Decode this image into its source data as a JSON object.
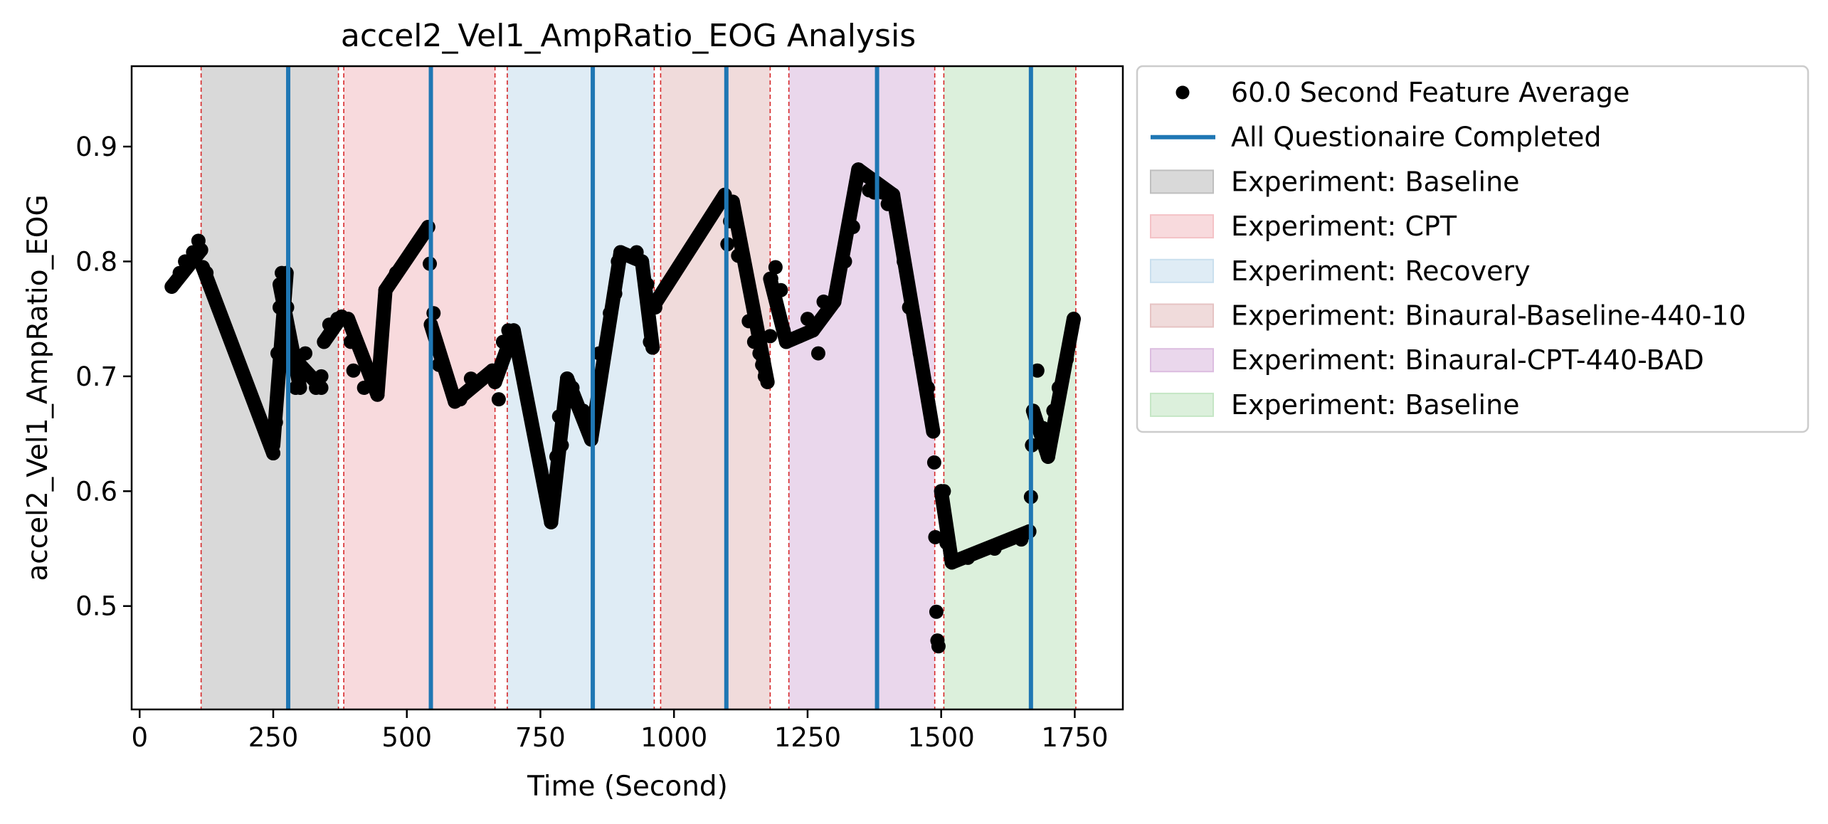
{
  "chart_data": {
    "type": "scatter",
    "title": "accel2_Vel1_AmpRatio_EOG Analysis",
    "xlabel": "Time (Second)",
    "ylabel": "accel2_Vel1_AmpRatio_EOG",
    "xlim": [
      -15,
      1840
    ],
    "ylim": [
      0.41,
      0.97
    ],
    "xticks": [
      {
        "value": 0,
        "label": "0"
      },
      {
        "value": 250,
        "label": "250"
      },
      {
        "value": 500,
        "label": "500"
      },
      {
        "value": 750,
        "label": "750"
      },
      {
        "value": 1000,
        "label": "1000"
      },
      {
        "value": 1250,
        "label": "1250"
      },
      {
        "value": 1500,
        "label": "1500"
      },
      {
        "value": 1750,
        "label": "1750"
      }
    ],
    "yticks": [
      {
        "value": 0.5,
        "label": "0.5"
      },
      {
        "value": 0.6,
        "label": "0.6"
      },
      {
        "value": 0.7,
        "label": "0.7"
      },
      {
        "value": 0.8,
        "label": "0.8"
      },
      {
        "value": 0.9,
        "label": "0.9"
      }
    ],
    "grid": false,
    "legend_placement": "outside-right",
    "series": [
      {
        "name": "60.0 Second Feature Average",
        "kind": "scatter",
        "color": "#000000",
        "points": [
          [
            60,
            0.778
          ],
          [
            75,
            0.79
          ],
          [
            85,
            0.8
          ],
          [
            100,
            0.808
          ],
          [
            110,
            0.818
          ],
          [
            115,
            0.81
          ],
          [
            118,
            0.795
          ],
          [
            125,
            0.79
          ],
          [
            250,
            0.633
          ],
          [
            255,
            0.66
          ],
          [
            258,
            0.72
          ],
          [
            262,
            0.76
          ],
          [
            266,
            0.79
          ],
          [
            270,
            0.775
          ],
          [
            276,
            0.76
          ],
          [
            285,
            0.72
          ],
          [
            292,
            0.69
          ],
          [
            300,
            0.71
          ],
          [
            310,
            0.72
          ],
          [
            320,
            0.7
          ],
          [
            330,
            0.69
          ],
          [
            340,
            0.7
          ],
          [
            345,
            0.73
          ],
          [
            355,
            0.745
          ],
          [
            370,
            0.75
          ],
          [
            378,
            0.752
          ],
          [
            390,
            0.75
          ],
          [
            395,
            0.73
          ],
          [
            400,
            0.705
          ],
          [
            420,
            0.69
          ],
          [
            445,
            0.684
          ],
          [
            460,
            0.775
          ],
          [
            480,
            0.79
          ],
          [
            540,
            0.83
          ],
          [
            543,
            0.798
          ],
          [
            545,
            0.745
          ],
          [
            550,
            0.755
          ],
          [
            555,
            0.73
          ],
          [
            560,
            0.71
          ],
          [
            590,
            0.678
          ],
          [
            600,
            0.68
          ],
          [
            620,
            0.698
          ],
          [
            650,
            0.7
          ],
          [
            660,
            0.705
          ],
          [
            665,
            0.695
          ],
          [
            672,
            0.68
          ],
          [
            680,
            0.73
          ],
          [
            690,
            0.74
          ],
          [
            700,
            0.735
          ],
          [
            770,
            0.573
          ],
          [
            775,
            0.61
          ],
          [
            780,
            0.63
          ],
          [
            785,
            0.665
          ],
          [
            790,
            0.64
          ],
          [
            800,
            0.698
          ],
          [
            810,
            0.69
          ],
          [
            830,
            0.67
          ],
          [
            845,
            0.645
          ],
          [
            860,
            0.72
          ],
          [
            880,
            0.755
          ],
          [
            890,
            0.772
          ],
          [
            895,
            0.8
          ],
          [
            900,
            0.808
          ],
          [
            930,
            0.808
          ],
          [
            940,
            0.8
          ],
          [
            950,
            0.78
          ],
          [
            955,
            0.73
          ],
          [
            960,
            0.725
          ],
          [
            965,
            0.76
          ],
          [
            1095,
            0.858
          ],
          [
            1100,
            0.815
          ],
          [
            1105,
            0.835
          ],
          [
            1110,
            0.852
          ],
          [
            1115,
            0.835
          ],
          [
            1120,
            0.805
          ],
          [
            1140,
            0.748
          ],
          [
            1150,
            0.73
          ],
          [
            1160,
            0.72
          ],
          [
            1165,
            0.71
          ],
          [
            1170,
            0.7
          ],
          [
            1175,
            0.695
          ],
          [
            1180,
            0.735
          ],
          [
            1182,
            0.785
          ],
          [
            1190,
            0.795
          ],
          [
            1200,
            0.775
          ],
          [
            1205,
            0.74
          ],
          [
            1210,
            0.73
          ],
          [
            1235,
            0.735
          ],
          [
            1250,
            0.75
          ],
          [
            1260,
            0.74
          ],
          [
            1270,
            0.72
          ],
          [
            1280,
            0.765
          ],
          [
            1300,
            0.765
          ],
          [
            1320,
            0.8
          ],
          [
            1335,
            0.83
          ],
          [
            1345,
            0.88
          ],
          [
            1355,
            0.875
          ],
          [
            1365,
            0.862
          ],
          [
            1375,
            0.86
          ],
          [
            1390,
            0.86
          ],
          [
            1400,
            0.85
          ],
          [
            1410,
            0.858
          ],
          [
            1420,
            0.83
          ],
          [
            1430,
            0.8
          ],
          [
            1440,
            0.76
          ],
          [
            1460,
            0.72
          ],
          [
            1475,
            0.69
          ],
          [
            1485,
            0.652
          ],
          [
            1487,
            0.625
          ],
          [
            1489,
            0.56
          ],
          [
            1491,
            0.495
          ],
          [
            1493,
            0.47
          ],
          [
            1495,
            0.465
          ],
          [
            1500,
            0.6
          ],
          [
            1505,
            0.6
          ],
          [
            1510,
            0.555
          ],
          [
            1520,
            0.538
          ],
          [
            1550,
            0.542
          ],
          [
            1600,
            0.55
          ],
          [
            1650,
            0.558
          ],
          [
            1665,
            0.565
          ],
          [
            1668,
            0.595
          ],
          [
            1670,
            0.64
          ],
          [
            1672,
            0.67
          ],
          [
            1680,
            0.705
          ],
          [
            1690,
            0.655
          ],
          [
            1700,
            0.63
          ],
          [
            1710,
            0.67
          ],
          [
            1720,
            0.69
          ],
          [
            1735,
            0.715
          ],
          [
            1748,
            0.75
          ]
        ],
        "segments": [
          [
            [
              60,
              0.778
            ],
            [
              115,
              0.81
            ]
          ],
          [
            [
              118,
              0.795
            ],
            [
              250,
              0.633
            ]
          ],
          [
            [
              250,
              0.64
            ],
            [
              275,
              0.79
            ]
          ],
          [
            [
              262,
              0.78
            ],
            [
              300,
              0.69
            ]
          ],
          [
            [
              300,
              0.71
            ],
            [
              340,
              0.69
            ]
          ],
          [
            [
              345,
              0.73
            ],
            [
              378,
              0.752
            ]
          ],
          [
            [
              390,
              0.75
            ],
            [
              445,
              0.684
            ]
          ],
          [
            [
              445,
              0.684
            ],
            [
              460,
              0.775
            ]
          ],
          [
            [
              460,
              0.775
            ],
            [
              540,
              0.83
            ]
          ],
          [
            [
              545,
              0.745
            ],
            [
              590,
              0.678
            ]
          ],
          [
            [
              590,
              0.678
            ],
            [
              660,
              0.705
            ]
          ],
          [
            [
              665,
              0.695
            ],
            [
              700,
              0.74
            ]
          ],
          [
            [
              700,
              0.74
            ],
            [
              770,
              0.573
            ]
          ],
          [
            [
              770,
              0.573
            ],
            [
              800,
              0.698
            ]
          ],
          [
            [
              800,
              0.698
            ],
            [
              845,
              0.645
            ]
          ],
          [
            [
              845,
              0.645
            ],
            [
              900,
              0.808
            ]
          ],
          [
            [
              900,
              0.808
            ],
            [
              940,
              0.8
            ]
          ],
          [
            [
              940,
              0.8
            ],
            [
              960,
              0.725
            ]
          ],
          [
            [
              960,
              0.76
            ],
            [
              1095,
              0.858
            ]
          ],
          [
            [
              1110,
              0.852
            ],
            [
              1175,
              0.695
            ]
          ],
          [
            [
              1180,
              0.785
            ],
            [
              1210,
              0.73
            ]
          ],
          [
            [
              1210,
              0.73
            ],
            [
              1260,
              0.74
            ]
          ],
          [
            [
              1260,
              0.74
            ],
            [
              1300,
              0.765
            ]
          ],
          [
            [
              1300,
              0.765
            ],
            [
              1345,
              0.88
            ]
          ],
          [
            [
              1345,
              0.88
            ],
            [
              1410,
              0.858
            ]
          ],
          [
            [
              1410,
              0.858
            ],
            [
              1485,
              0.652
            ]
          ],
          [
            [
              1500,
              0.6
            ],
            [
              1520,
              0.538
            ]
          ],
          [
            [
              1520,
              0.538
            ],
            [
              1665,
              0.565
            ]
          ],
          [
            [
              1672,
              0.67
            ],
            [
              1700,
              0.63
            ]
          ],
          [
            [
              1700,
              0.63
            ],
            [
              1748,
              0.75
            ]
          ]
        ]
      },
      {
        "name": "All Questionaire Completed",
        "kind": "vline",
        "color": "#1f77b4",
        "x": [
          278,
          545,
          848,
          1098,
          1380,
          1668
        ]
      }
    ],
    "regions": [
      {
        "name": "Experiment: Baseline",
        "start": 115,
        "end": 372,
        "color": "#bfbfbf"
      },
      {
        "name": "Experiment: CPT",
        "start": 382,
        "end": 665,
        "color": "#f4c2c6"
      },
      {
        "name": "Experiment: Recovery",
        "start": 688,
        "end": 963,
        "color": "#c9dfee"
      },
      {
        "name": "Experiment: Binaural-Baseline-440-10",
        "start": 975,
        "end": 1180,
        "color": "#e6c3c3"
      },
      {
        "name": "Experiment: Binaural-CPT-440-BAD",
        "start": 1215,
        "end": 1488,
        "color": "#dcbde0"
      },
      {
        "name": "Experiment: Baseline",
        "start": 1505,
        "end": 1752,
        "color": "#c5e6c5"
      }
    ],
    "boundary_lines": {
      "color": "#d62728",
      "x": [
        115,
        372,
        382,
        665,
        688,
        963,
        975,
        1180,
        1215,
        1488,
        1505,
        1752
      ]
    },
    "legend": [
      {
        "label": "60.0 Second Feature Average",
        "kind": "marker",
        "color": "#000000"
      },
      {
        "label": "All Questionaire Completed",
        "kind": "line",
        "color": "#1f77b4"
      },
      {
        "label": "Experiment: Baseline",
        "kind": "patch",
        "color": "#bfbfbf"
      },
      {
        "label": "Experiment: CPT",
        "kind": "patch",
        "color": "#f4c2c6"
      },
      {
        "label": "Experiment: Recovery",
        "kind": "patch",
        "color": "#c9dfee"
      },
      {
        "label": "Experiment: Binaural-Baseline-440-10",
        "kind": "patch",
        "color": "#e6c3c3"
      },
      {
        "label": "Experiment: Binaural-CPT-440-BAD",
        "kind": "patch",
        "color": "#dcbde0"
      },
      {
        "label": "Experiment: Baseline",
        "kind": "patch",
        "color": "#c5e6c5"
      }
    ]
  }
}
